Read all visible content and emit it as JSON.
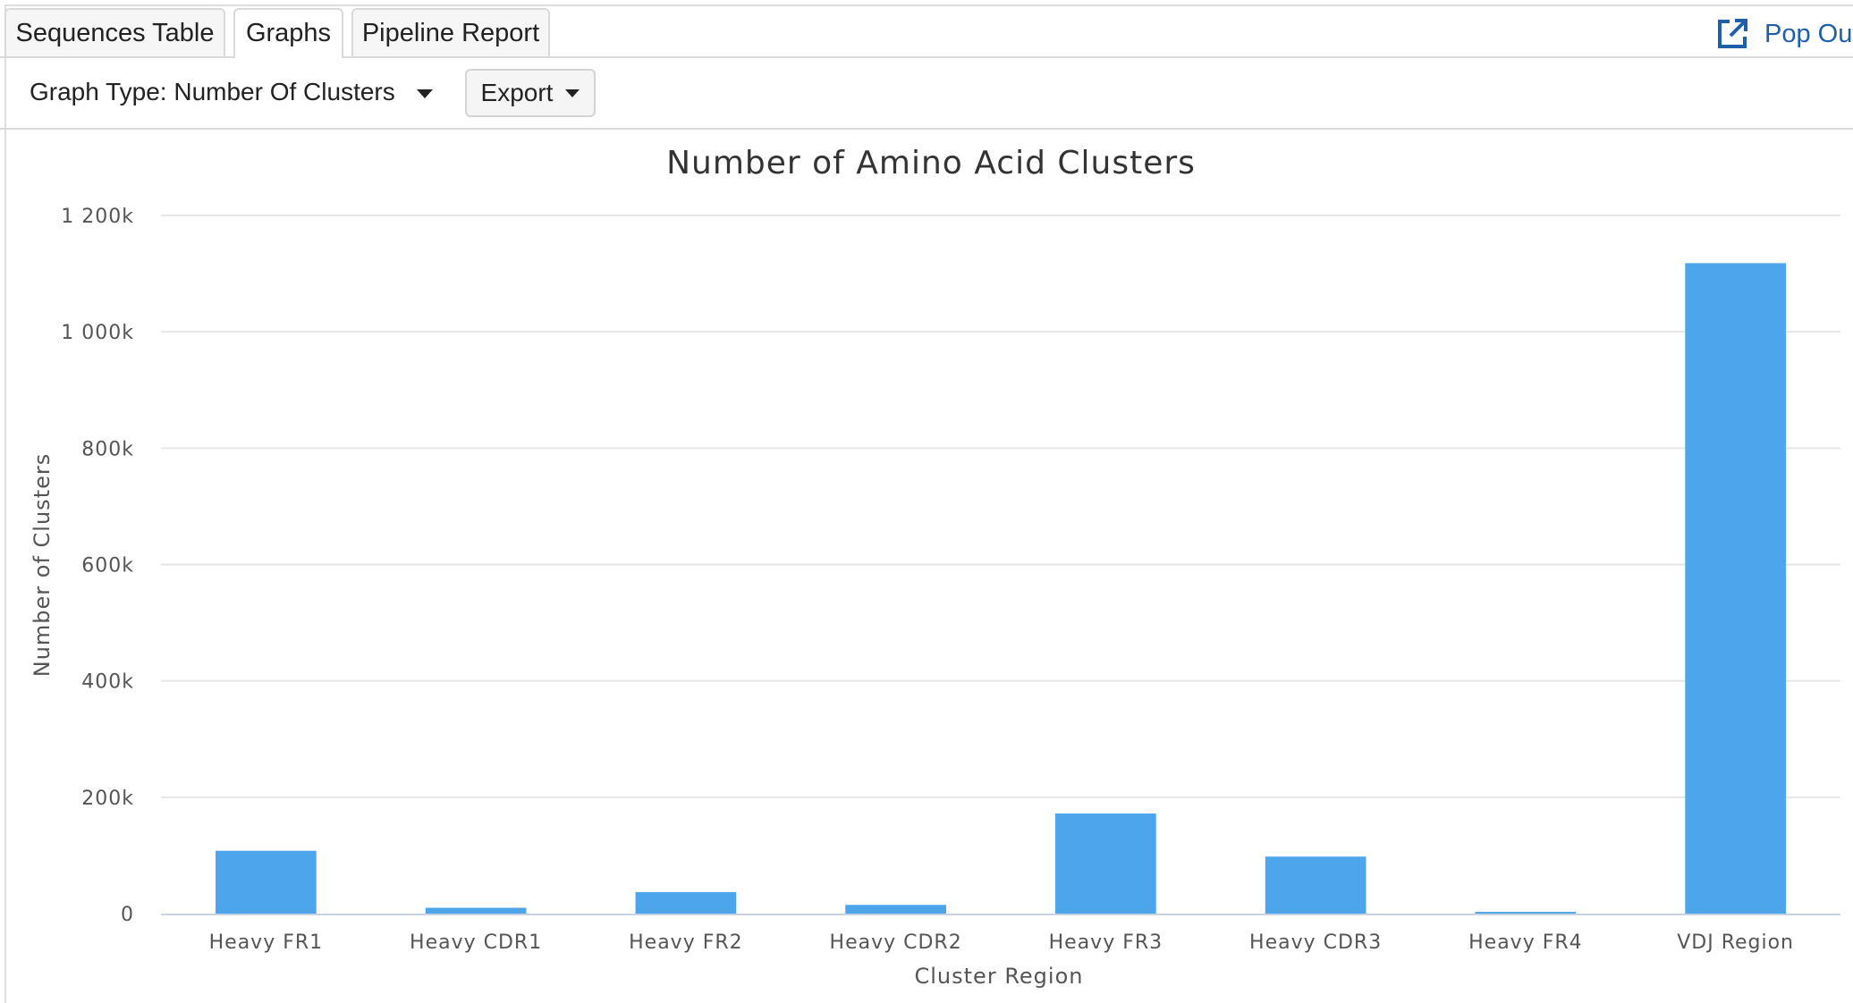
{
  "tabs": [
    {
      "label": "Sequences Table",
      "active": false
    },
    {
      "label": "Graphs",
      "active": true
    },
    {
      "label": "Pipeline Report",
      "active": false
    }
  ],
  "popout": {
    "label": "Pop Out",
    "icon": "external-link-icon"
  },
  "toolbar": {
    "graph_type_label": "Graph Type: Number Of Clusters",
    "export_label": "Export"
  },
  "colors": {
    "bar": "#4da6ec",
    "grid": "#e6e6e6",
    "axis_text": "#555555",
    "link": "#1f5fa8"
  },
  "chart_data": {
    "type": "bar",
    "title": "Number of Amino Acid Clusters",
    "xlabel": "Cluster Region",
    "ylabel": "Number of Clusters",
    "categories": [
      "Heavy FR1",
      "Heavy CDR1",
      "Heavy FR2",
      "Heavy CDR2",
      "Heavy FR3",
      "Heavy CDR3",
      "Heavy FR4",
      "VDJ Region"
    ],
    "values": [
      108000,
      10000,
      37000,
      15000,
      172000,
      98000,
      3000,
      1118000
    ],
    "ylim": [
      0,
      1200000
    ],
    "yticks": [
      0,
      200000,
      400000,
      600000,
      800000,
      1000000,
      1200000
    ],
    "ytick_labels": [
      "0",
      "200k",
      "400k",
      "600k",
      "800k",
      "1 000k",
      "1 200k"
    ],
    "grid": true,
    "legend": "none"
  }
}
